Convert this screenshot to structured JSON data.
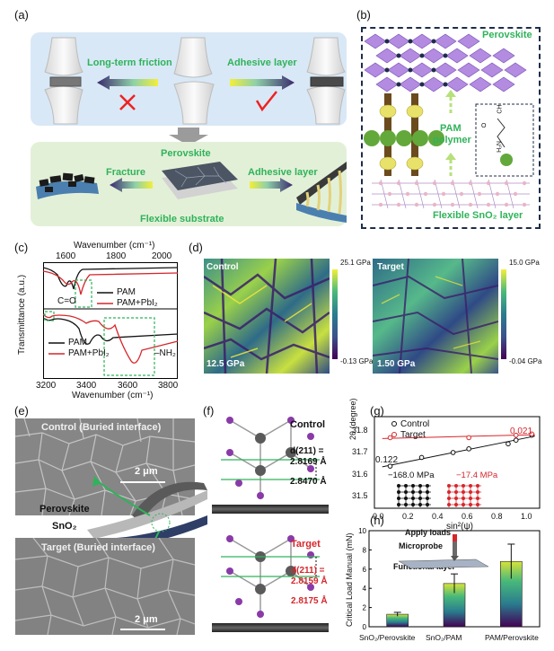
{
  "panels": {
    "a": "(a)",
    "b": "(b)",
    "c": "(c)",
    "d": "(d)",
    "e": "(e)",
    "f": "(f)",
    "g": "(g)",
    "h": "(h)"
  },
  "panel_a": {
    "friction_label": "Long-term friction",
    "adhesive_top": "Adhesive layer",
    "perovskite_label": "Perovskite",
    "fracture_label": "Fracture",
    "adhesive_bottom": "Adhesive layer",
    "substrate_label": "Flexible substrate"
  },
  "panel_b": {
    "perovskite_label": "Perovskite",
    "polymer_label_1": "PAM",
    "polymer_label_2": "polymer",
    "sno2_label": "Flexible SnO₂ layer",
    "mol_o": "O",
    "mol_nh2": "H₂N",
    "mol_ch": "CH"
  },
  "panel_c": {
    "top_axis_title": "Wavenumber (cm⁻¹)",
    "top_ticks": [
      "1600",
      "1800",
      "2000"
    ],
    "bottom_axis_title": "Wavenumber (cm⁻¹)",
    "bottom_ticks": [
      "3200",
      "3400",
      "3600",
      "3800"
    ],
    "ylabel": "Transmittance (a.u.)",
    "legend_top": [
      "PAM",
      "PAM+PbI₂"
    ],
    "legend_bottom": [
      "PAM",
      "PAM+PbI₂"
    ],
    "co_label": "C=O",
    "nh2_label": "–NH₂"
  },
  "panel_d": {
    "control_label": "Control",
    "control_value": "12.5 GPa",
    "control_max": "25.1 GPa",
    "control_min": "-0.13 GPa",
    "target_label": "Target",
    "target_value": "1.50 GPa",
    "target_max": "15.0 GPa",
    "target_min": "-0.04 GPa"
  },
  "panel_e": {
    "control_title": "Control (Buried interface)",
    "target_title": "Target (Buried interface)",
    "scale_top": "2 μm",
    "scale_bottom": "2 μm",
    "perovskite": "Perovskite",
    "sno2": "SnO₂"
  },
  "panel_f": {
    "control_title": "Control",
    "control_d": "d(211) =",
    "control_d1": "2.8169 Å",
    "control_d2": "2.8470 Å",
    "target_title": "Target",
    "target_d": "d(211) =",
    "target_d1": "2.8159 Å",
    "target_d2": "2.8175 Å"
  },
  "panel_g": {
    "ylabel": "2θ (degree)",
    "xlabel": "sin²(ψ)",
    "legend": [
      "Control",
      "Target"
    ],
    "slope_control": "0.122",
    "slope_target": "0.021",
    "stress_control": "−168.0 MPa",
    "stress_target": "−17.4 MPa",
    "yticks": [
      "31.5",
      "31.6",
      "31.7",
      "31.8"
    ],
    "xticks": [
      "0.0",
      "0.2",
      "0.4",
      "0.6",
      "0.8",
      "1.0"
    ]
  },
  "panel_h": {
    "ylabel": "Critical Load Manual (mN)",
    "yticks": [
      "0",
      "2",
      "4",
      "6",
      "8",
      "10"
    ],
    "apply_loads": "Apply loads",
    "microprobe": "Microprobe",
    "functional_layer": "Functional layer"
  },
  "chart_data": [
    {
      "type": "scatter",
      "xlabel": "sin²(ψ)",
      "ylabel": "2θ (degree)",
      "xlim": [
        0.0,
        1.05
      ],
      "ylim": [
        31.45,
        31.82
      ],
      "series": [
        {
          "name": "Control",
          "x": [
            0.1,
            0.3,
            0.5,
            0.6,
            0.85,
            0.9,
            1.0
          ],
          "y": [
            31.62,
            31.655,
            31.675,
            31.69,
            31.71,
            31.725,
            31.745
          ]
        },
        {
          "name": "Target",
          "x": [
            0.1,
            0.6,
            0.9,
            1.0
          ],
          "y": [
            31.735,
            31.735,
            31.745,
            31.75
          ]
        }
      ]
    },
    {
      "type": "bar",
      "ylabel": "Critical Load Manual (mN)",
      "ylim": [
        0,
        10
      ],
      "categories": [
        "SnO₂/Perovskite",
        "SnO₂/PAM",
        "PAM/Perovskite"
      ],
      "values": [
        1.3,
        4.5,
        6.8
      ],
      "errors": [
        0.2,
        1.0,
        1.8
      ]
    }
  ],
  "colors": {
    "accent_green": "#2fb35a",
    "accent_red": "#d6262b",
    "navy": "#1e2d4a",
    "panel_a_top_bg": "#d9e8f6",
    "panel_a_bottom_bg": "#e3f0d8"
  }
}
